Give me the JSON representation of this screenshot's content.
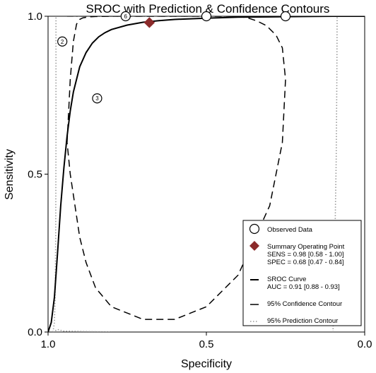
{
  "chart_data": {
    "type": "scatter",
    "title": "SROC with Prediction & Confidence Contours",
    "xlabel": "Specificity",
    "ylabel": "Sensitivity",
    "x_reversed": true,
    "xlim": [
      1.0,
      0.0
    ],
    "ylim": [
      0.0,
      1.0
    ],
    "x_ticks": [
      {
        "value": 1.0,
        "label": "1.0"
      },
      {
        "value": 0.5,
        "label": "0.5"
      },
      {
        "value": 0.0,
        "label": "0.0"
      }
    ],
    "y_ticks": [
      {
        "value": 0.0,
        "label": "0.0"
      },
      {
        "value": 0.5,
        "label": "0.5"
      },
      {
        "value": 1.0,
        "label": "1.0"
      }
    ],
    "grid": false,
    "colors": {
      "title": "#1f3a93",
      "summary_point": "#8b2a2a",
      "curve": "#000000",
      "prediction": "#999999"
    },
    "observed": [
      {
        "label": "2",
        "specificity": 0.955,
        "sensitivity": 0.92
      },
      {
        "label": "3",
        "specificity": 0.845,
        "sensitivity": 0.74
      },
      {
        "label": "6",
        "specificity": 0.755,
        "sensitivity": 1.0
      },
      {
        "label": "",
        "specificity": 0.5,
        "sensitivity": 1.0
      },
      {
        "label": "",
        "specificity": 0.25,
        "sensitivity": 1.0
      }
    ],
    "summary_point": {
      "specificity": 0.68,
      "sensitivity": 0.98
    },
    "sroc_curve": {
      "specificity": [
        1.0,
        0.99,
        0.98,
        0.97,
        0.96,
        0.95,
        0.94,
        0.93,
        0.92,
        0.9,
        0.88,
        0.86,
        0.84,
        0.82,
        0.8,
        0.75,
        0.7,
        0.65,
        0.6,
        0.5,
        0.4,
        0.3,
        0.2,
        0.1,
        0.0
      ],
      "sensitivity": [
        0.0,
        0.03,
        0.11,
        0.25,
        0.4,
        0.52,
        0.62,
        0.7,
        0.76,
        0.84,
        0.885,
        0.915,
        0.935,
        0.948,
        0.958,
        0.972,
        0.981,
        0.986,
        0.99,
        0.994,
        0.997,
        0.998,
        0.999,
        1.0,
        1.0
      ]
    },
    "confidence_contour": {
      "specificity": [
        0.94,
        0.93,
        0.92,
        0.91,
        0.9,
        0.89,
        0.87,
        0.85,
        0.8,
        0.75,
        0.7,
        0.65,
        0.6,
        0.55,
        0.5,
        0.45,
        0.4,
        0.37,
        0.34,
        0.31,
        0.28,
        0.26,
        0.25,
        0.26,
        0.3,
        0.4,
        0.5,
        0.6,
        0.7,
        0.8,
        0.85,
        0.88,
        0.9,
        0.915,
        0.93,
        0.94
      ],
      "sensitivity": [
        0.6,
        0.8,
        0.92,
        0.975,
        0.99,
        0.995,
        0.998,
        0.999,
        1.0,
        1.0,
        1.0,
        1.0,
        1.0,
        1.0,
        1.0,
        1.0,
        1.0,
        0.995,
        0.985,
        0.97,
        0.94,
        0.9,
        0.8,
        0.6,
        0.4,
        0.18,
        0.08,
        0.04,
        0.04,
        0.08,
        0.14,
        0.22,
        0.3,
        0.4,
        0.5,
        0.6
      ]
    },
    "prediction_contour": [
      {
        "specificity": [
          0.985,
          0.983,
          0.98,
          0.978,
          0.976,
          0.975,
          0.975
        ],
        "sensitivity": [
          0.0,
          0.01,
          0.03,
          0.1,
          0.3,
          0.6,
          1.0
        ]
      },
      {
        "specificity": [
          0.985,
          0.97,
          0.95,
          0.9,
          0.85,
          0.8
        ],
        "sensitivity": [
          0.0,
          0.008,
          0.003,
          0.002,
          0.001,
          0.0
        ]
      },
      {
        "specificity": [
          0.1,
          0.097,
          0.093,
          0.09,
          0.088,
          0.087
        ],
        "sensitivity": [
          0.0,
          0.15,
          0.35,
          0.55,
          0.8,
          1.0
        ]
      }
    ],
    "legend": {
      "placement": "bottom-right",
      "entries": [
        {
          "type": "observed",
          "lines": [
            "Observed Data"
          ]
        },
        {
          "type": "summary",
          "lines": [
            "Summary Operating Point",
            "SENS = 0.98 [0.58 - 1.00]",
            "SPEC = 0.68 [0.47 - 0.84]"
          ]
        },
        {
          "type": "sroc",
          "lines": [
            "SROC Curve",
            "AUC = 0.91 [0.88 - 0.93]"
          ]
        },
        {
          "type": "confidence",
          "lines": [
            "95% Confidence Contour"
          ]
        },
        {
          "type": "prediction",
          "lines": [
            "95% Prediction Contour"
          ]
        }
      ]
    }
  }
}
